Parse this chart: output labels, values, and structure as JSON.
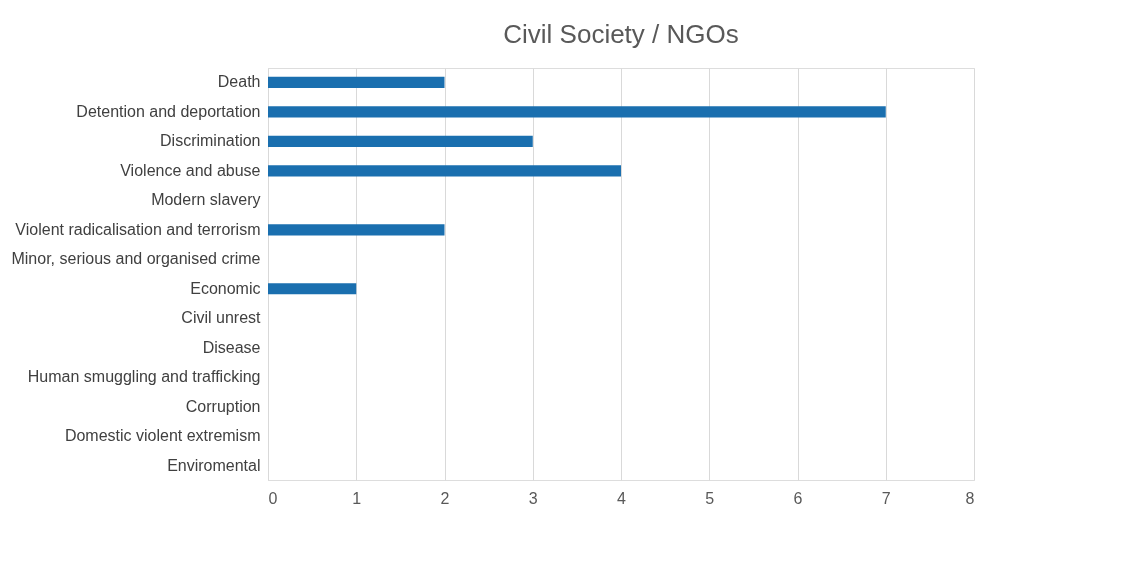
{
  "chart_data": {
    "type": "bar",
    "orientation": "horizontal",
    "title": "Civil Society / NGOs",
    "categories": [
      "Death",
      "Detention and deportation",
      "Discrimination",
      "Violence and abuse",
      "Modern slavery",
      "Violent radicalisation and terrorism",
      "Minor, serious and organised crime",
      "Economic",
      "Civil unrest",
      "Disease",
      "Human smuggling and trafficking",
      "Corruption",
      "Domestic violent extremism",
      "Enviromental"
    ],
    "values": [
      2,
      7,
      3,
      4,
      0,
      2,
      0,
      1,
      0,
      0,
      0,
      0,
      0,
      0
    ],
    "color": "#1a6faf",
    "xlim": [
      0,
      8
    ],
    "xticks": [
      0,
      1,
      2,
      3,
      4,
      5,
      6,
      7,
      8
    ],
    "grid": "x"
  }
}
